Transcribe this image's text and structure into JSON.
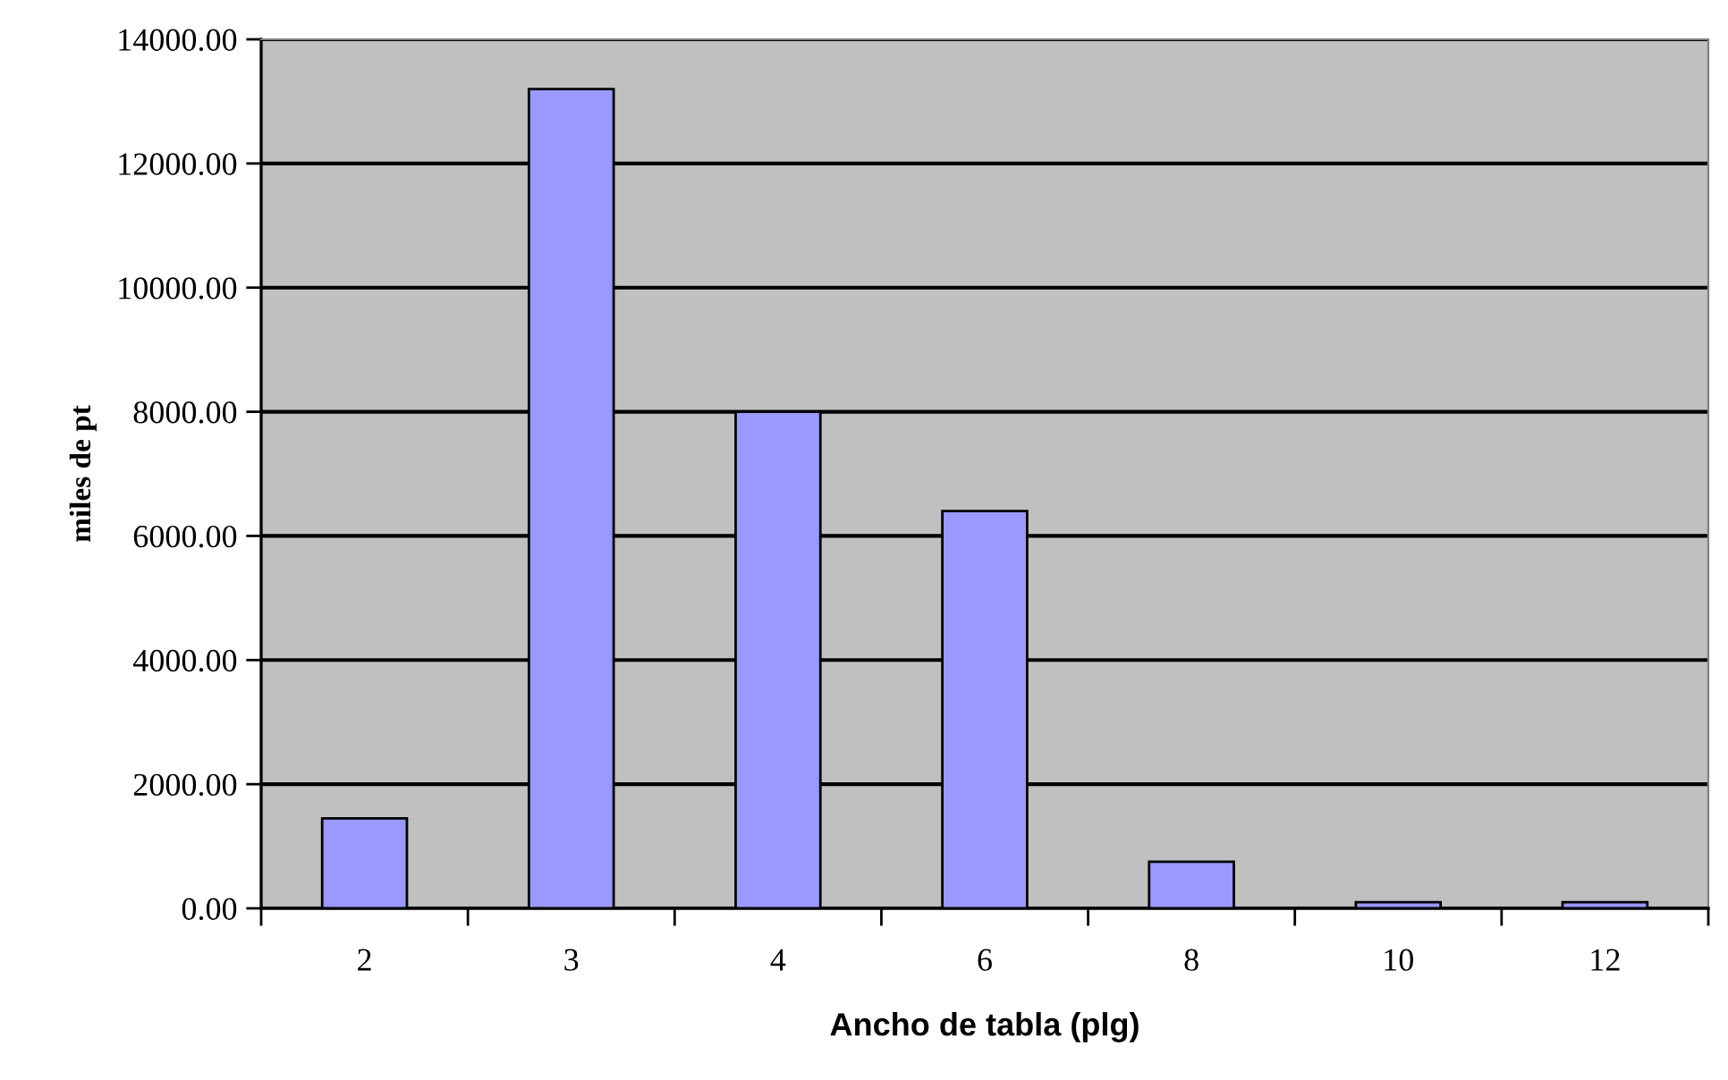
{
  "chart_data": {
    "type": "bar",
    "xlabel": "Ancho de tabla (plg)",
    "ylabel": "miles de pt",
    "categories": [
      "2",
      "3",
      "4",
      "6",
      "8",
      "10",
      "12"
    ],
    "values": [
      1450,
      13200,
      8000,
      6400,
      750,
      100,
      100
    ],
    "color": "#9999ff",
    "ylim": [
      0,
      14000
    ],
    "yticks": [
      {
        "value": 0,
        "label": "0.00"
      },
      {
        "value": 2000,
        "label": "2000.00"
      },
      {
        "value": 4000,
        "label": "4000.00"
      },
      {
        "value": 6000,
        "label": "6000.00"
      },
      {
        "value": 8000,
        "label": "8000.00"
      },
      {
        "value": 10000,
        "label": "10000.00"
      },
      {
        "value": 12000,
        "label": "12000.00"
      },
      {
        "value": 14000,
        "label": "14000.00"
      }
    ],
    "grid": "y"
  }
}
